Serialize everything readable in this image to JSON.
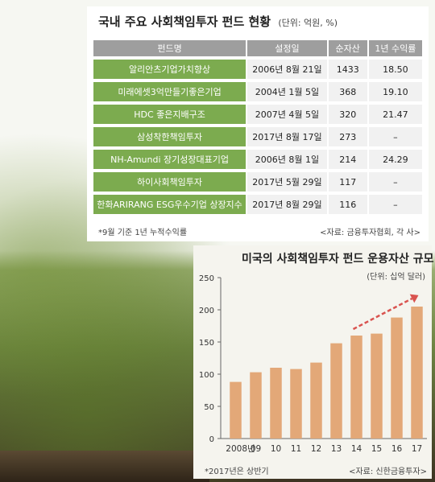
{
  "table": {
    "title": "국내 주요 사회책임투자 펀드 현황",
    "unit": "(단위: 억원, %)",
    "headers": [
      "펀드명",
      "설정일",
      "순자산",
      "1년 수익률"
    ],
    "rows": [
      [
        "알리안츠기업가치향상",
        "2006년 8월 21일",
        "1433",
        "18.50"
      ],
      [
        "미래에셋3억만들기좋은기업",
        "2004년 1월 5일",
        "368",
        "19.10"
      ],
      [
        "HDC 좋은지배구조",
        "2007년 4월 5일",
        "320",
        "21.47"
      ],
      [
        "삼성착한책임투자",
        "2017년 8월 17일",
        "273",
        "–"
      ],
      [
        "NH-Amundi 장기성장대표기업",
        "2006년 8월 1일",
        "214",
        "24.29"
      ],
      [
        "하이사회책임투자",
        "2017년 5월 29일",
        "117",
        "–"
      ],
      [
        "한화ARIRANG ESG우수기업 상장지수",
        "2017년 8월 29일",
        "116",
        "–"
      ]
    ],
    "note": "*9월 기준 1년 누적수익률",
    "source": "<자료: 금융투자협회, 각 사>"
  },
  "chart_data": {
    "type": "bar",
    "title": "미국의 사회책임투자 펀드 운용자산 규모",
    "unit": "(단위: 십억 달러)",
    "categories": [
      "2008년",
      "09",
      "10",
      "11",
      "12",
      "13",
      "14",
      "15",
      "16",
      "17"
    ],
    "values": [
      88,
      103,
      110,
      108,
      118,
      148,
      160,
      163,
      188,
      205
    ],
    "ylim": [
      0,
      250
    ],
    "yticks": [
      0,
      50,
      100,
      150,
      200,
      250
    ],
    "grid": false,
    "bar_color": "#e3a878",
    "annotation_arrow_color": "#d9534f",
    "note": "*2017년은 상반기",
    "source": "<자료: 신한금융투자>"
  }
}
